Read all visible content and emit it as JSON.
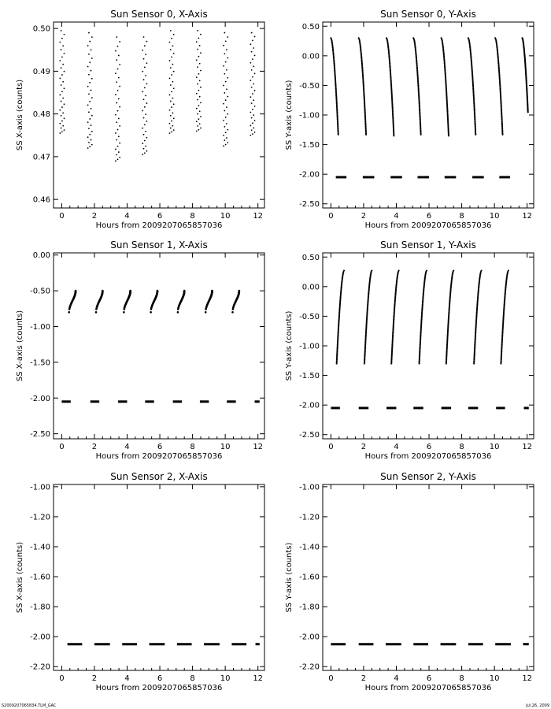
{
  "footer": {
    "left": "S2009207065834.TLM_GAC",
    "right": "Jul 26, 2009"
  },
  "chart_data": [
    {
      "type": "scatter",
      "title": "Sun Sensor 0, X-Axis",
      "xlabel": "Hours from  2009207065857036",
      "ylabel": "SS X-axis (counts)",
      "xlim": [
        -0.5,
        12.4
      ],
      "ylim": [
        0.458,
        0.5015
      ],
      "xticks": [
        0,
        2,
        4,
        6,
        8,
        10,
        12
      ],
      "yticks": [
        0.46,
        0.47,
        0.48,
        0.49,
        0.5
      ],
      "ytick_labels": [
        "0.46",
        "0.47",
        "0.48",
        "0.49",
        "0.50"
      ],
      "grid": false,
      "features": [
        {
          "kind": "vband",
          "x": [
            -0.1,
            0.15
          ],
          "y": [
            0.4755,
            0.4995
          ]
        },
        {
          "kind": "vband",
          "x": [
            1.6,
            1.85
          ],
          "y": [
            0.472,
            0.499
          ]
        },
        {
          "kind": "vband",
          "x": [
            3.3,
            3.55
          ],
          "y": [
            0.469,
            0.498
          ]
        },
        {
          "kind": "vband",
          "x": [
            4.95,
            5.2
          ],
          "y": [
            0.4705,
            0.498
          ]
        },
        {
          "kind": "vband",
          "x": [
            6.6,
            6.85
          ],
          "y": [
            0.4755,
            0.4995
          ]
        },
        {
          "kind": "vband",
          "x": [
            8.25,
            8.5
          ],
          "y": [
            0.476,
            0.4995
          ]
        },
        {
          "kind": "vband",
          "x": [
            9.9,
            10.15
          ],
          "y": [
            0.4725,
            0.499
          ]
        },
        {
          "kind": "vband",
          "x": [
            11.55,
            11.8
          ],
          "y": [
            0.475,
            0.499
          ]
        }
      ]
    },
    {
      "type": "scatter",
      "title": "Sun Sensor 0, Y-Axis",
      "xlabel": "Hours from  2009207065857036",
      "ylabel": "SS Y-axis (counts)",
      "xlim": [
        -0.5,
        12.4
      ],
      "ylim": [
        -2.57,
        0.57
      ],
      "xticks": [
        0,
        2,
        4,
        6,
        8,
        10,
        12
      ],
      "yticks": [
        -2.5,
        -2.0,
        -1.5,
        -1.0,
        -0.5,
        0.0,
        0.5
      ],
      "ytick_labels": [
        "-2.50",
        "-2.00",
        "-1.50",
        "-1.00",
        "-0.50",
        "0.00",
        "0.50"
      ],
      "grid": false,
      "features": [
        {
          "kind": "curve",
          "x": [
            0.0,
            0.45
          ],
          "y": [
            0.3,
            -1.33
          ],
          "shape": "concave"
        },
        {
          "kind": "curve",
          "x": [
            1.7,
            2.15
          ],
          "y": [
            0.3,
            -1.33
          ],
          "shape": "concave"
        },
        {
          "kind": "curve",
          "x": [
            3.4,
            3.85
          ],
          "y": [
            0.3,
            -1.35
          ],
          "shape": "concave"
        },
        {
          "kind": "curve",
          "x": [
            5.05,
            5.5
          ],
          "y": [
            0.3,
            -1.33
          ],
          "shape": "concave"
        },
        {
          "kind": "curve",
          "x": [
            6.75,
            7.2
          ],
          "y": [
            0.3,
            -1.35
          ],
          "shape": "concave"
        },
        {
          "kind": "curve",
          "x": [
            8.4,
            8.85
          ],
          "y": [
            0.3,
            -1.33
          ],
          "shape": "concave"
        },
        {
          "kind": "curve",
          "x": [
            10.05,
            10.5
          ],
          "y": [
            0.3,
            -1.33
          ],
          "shape": "concave"
        },
        {
          "kind": "curve",
          "x": [
            11.7,
            12.05
          ],
          "y": [
            0.3,
            -0.95
          ],
          "shape": "concave"
        },
        {
          "kind": "dash",
          "x": [
            0.3,
            0.95
          ],
          "y": -2.05
        },
        {
          "kind": "dash",
          "x": [
            1.95,
            2.65
          ],
          "y": -2.05
        },
        {
          "kind": "dash",
          "x": [
            3.65,
            4.35
          ],
          "y": -2.05
        },
        {
          "kind": "dash",
          "x": [
            5.3,
            6.0
          ],
          "y": -2.05
        },
        {
          "kind": "dash",
          "x": [
            6.95,
            7.65
          ],
          "y": -2.05
        },
        {
          "kind": "dash",
          "x": [
            8.65,
            9.35
          ],
          "y": -2.05
        },
        {
          "kind": "dash",
          "x": [
            10.3,
            10.95
          ],
          "y": -2.05
        }
      ]
    },
    {
      "type": "scatter",
      "title": "Sun Sensor 1, X-Axis",
      "xlabel": "Hours from  2009207065857036",
      "ylabel": "SS X-axis (counts)",
      "xlim": [
        -0.5,
        12.4
      ],
      "ylim": [
        -2.57,
        0.03
      ],
      "xticks": [
        0,
        2,
        4,
        6,
        8,
        10,
        12
      ],
      "yticks": [
        -2.5,
        -2.0,
        -1.5,
        -1.0,
        -0.5,
        0.0
      ],
      "ytick_labels": [
        "-2.50",
        "-2.00",
        "-1.50",
        "-1.00",
        "-0.50",
        "0.00"
      ],
      "grid": false,
      "features": [
        {
          "kind": "hook",
          "x": [
            0.45,
            0.85
          ],
          "y": [
            -0.8,
            -0.5
          ]
        },
        {
          "kind": "hook",
          "x": [
            2.1,
            2.5
          ],
          "y": [
            -0.8,
            -0.5
          ]
        },
        {
          "kind": "hook",
          "x": [
            3.8,
            4.2
          ],
          "y": [
            -0.8,
            -0.5
          ]
        },
        {
          "kind": "hook",
          "x": [
            5.45,
            5.85
          ],
          "y": [
            -0.8,
            -0.5
          ]
        },
        {
          "kind": "hook",
          "x": [
            7.1,
            7.5
          ],
          "y": [
            -0.8,
            -0.5
          ]
        },
        {
          "kind": "hook",
          "x": [
            8.8,
            9.2
          ],
          "y": [
            -0.8,
            -0.5
          ]
        },
        {
          "kind": "hook",
          "x": [
            10.45,
            10.85
          ],
          "y": [
            -0.8,
            -0.5
          ]
        },
        {
          "kind": "dash",
          "x": [
            0.0,
            0.55
          ],
          "y": -2.05
        },
        {
          "kind": "dash",
          "x": [
            1.75,
            2.3
          ],
          "y": -2.05
        },
        {
          "kind": "dash",
          "x": [
            3.45,
            4.0
          ],
          "y": -2.05
        },
        {
          "kind": "dash",
          "x": [
            5.1,
            5.65
          ],
          "y": -2.05
        },
        {
          "kind": "dash",
          "x": [
            6.8,
            7.35
          ],
          "y": -2.05
        },
        {
          "kind": "dash",
          "x": [
            8.45,
            9.0
          ],
          "y": -2.05
        },
        {
          "kind": "dash",
          "x": [
            10.1,
            10.65
          ],
          "y": -2.05
        },
        {
          "kind": "dash",
          "x": [
            11.8,
            12.1
          ],
          "y": -2.05
        }
      ]
    },
    {
      "type": "scatter",
      "title": "Sun Sensor 1, Y-Axis",
      "xlabel": "Hours from  2009207065857036",
      "ylabel": "SS Y-axis (counts)",
      "xlim": [
        -0.5,
        12.4
      ],
      "ylim": [
        -2.57,
        0.57
      ],
      "xticks": [
        0,
        2,
        4,
        6,
        8,
        10,
        12
      ],
      "yticks": [
        -2.5,
        -2.0,
        -1.5,
        -1.0,
        -0.5,
        0.0,
        0.5
      ],
      "ytick_labels": [
        "-2.50",
        "-2.00",
        "-1.50",
        "-1.00",
        "-0.50",
        "0.00",
        "0.50"
      ],
      "grid": false,
      "features": [
        {
          "kind": "curve",
          "x": [
            0.35,
            0.8
          ],
          "y": [
            -1.3,
            0.27
          ],
          "shape": "rising"
        },
        {
          "kind": "curve",
          "x": [
            2.05,
            2.5
          ],
          "y": [
            -1.3,
            0.27
          ],
          "shape": "rising"
        },
        {
          "kind": "curve",
          "x": [
            3.7,
            4.15
          ],
          "y": [
            -1.3,
            0.27
          ],
          "shape": "rising"
        },
        {
          "kind": "curve",
          "x": [
            5.4,
            5.85
          ],
          "y": [
            -1.3,
            0.27
          ],
          "shape": "rising"
        },
        {
          "kind": "curve",
          "x": [
            7.05,
            7.5
          ],
          "y": [
            -1.3,
            0.27
          ],
          "shape": "rising"
        },
        {
          "kind": "curve",
          "x": [
            8.75,
            9.2
          ],
          "y": [
            -1.3,
            0.27
          ],
          "shape": "rising"
        },
        {
          "kind": "curve",
          "x": [
            10.4,
            10.85
          ],
          "y": [
            -1.3,
            0.27
          ],
          "shape": "rising"
        },
        {
          "kind": "dash",
          "x": [
            0.0,
            0.55
          ],
          "y": -2.05
        },
        {
          "kind": "dash",
          "x": [
            1.7,
            2.3
          ],
          "y": -2.05
        },
        {
          "kind": "dash",
          "x": [
            3.4,
            4.0
          ],
          "y": -2.05
        },
        {
          "kind": "dash",
          "x": [
            5.05,
            5.65
          ],
          "y": -2.05
        },
        {
          "kind": "dash",
          "x": [
            6.75,
            7.35
          ],
          "y": -2.05
        },
        {
          "kind": "dash",
          "x": [
            8.4,
            9.0
          ],
          "y": -2.05
        },
        {
          "kind": "dash",
          "x": [
            10.1,
            10.65
          ],
          "y": -2.05
        },
        {
          "kind": "dash",
          "x": [
            11.8,
            12.1
          ],
          "y": -2.05
        }
      ]
    },
    {
      "type": "scatter",
      "title": "Sun Sensor 2, X-Axis",
      "xlabel": "Hours from  2009207065857036",
      "ylabel": "SS X-axis (counts)",
      "xlim": [
        -0.5,
        12.4
      ],
      "ylim": [
        -2.225,
        -0.985
      ],
      "xticks": [
        0,
        2,
        4,
        6,
        8,
        10,
        12
      ],
      "yticks": [
        -2.2,
        -2.0,
        -1.8,
        -1.6,
        -1.4,
        -1.2,
        -1.0
      ],
      "ytick_labels": [
        "-2.20",
        "-2.00",
        "-1.80",
        "-1.60",
        "-1.40",
        "-1.20",
        "-1.00"
      ],
      "grid": false,
      "features": [
        {
          "kind": "dash",
          "x": [
            0.35,
            1.25
          ],
          "y": -2.05
        },
        {
          "kind": "dash",
          "x": [
            2.0,
            2.95
          ],
          "y": -2.05
        },
        {
          "kind": "dash",
          "x": [
            3.7,
            4.6
          ],
          "y": -2.05
        },
        {
          "kind": "dash",
          "x": [
            5.35,
            6.3
          ],
          "y": -2.05
        },
        {
          "kind": "dash",
          "x": [
            7.05,
            7.95
          ],
          "y": -2.05
        },
        {
          "kind": "dash",
          "x": [
            8.7,
            9.65
          ],
          "y": -2.05
        },
        {
          "kind": "dash",
          "x": [
            10.4,
            11.3
          ],
          "y": -2.05
        },
        {
          "kind": "dash",
          "x": [
            11.85,
            12.1
          ],
          "y": -2.05
        }
      ]
    },
    {
      "type": "scatter",
      "title": "Sun Sensor 2, Y-Axis",
      "xlabel": "Hours from  2009207065857036",
      "ylabel": "SS Y-axis (counts)",
      "xlim": [
        -0.5,
        12.4
      ],
      "ylim": [
        -2.225,
        -0.985
      ],
      "xticks": [
        0,
        2,
        4,
        6,
        8,
        10,
        12
      ],
      "yticks": [
        -2.2,
        -2.0,
        -1.8,
        -1.6,
        -1.4,
        -1.2,
        -1.0
      ],
      "ytick_labels": [
        "-2.20",
        "-2.00",
        "-1.80",
        "-1.60",
        "-1.40",
        "-1.20",
        "-1.00"
      ],
      "grid": false,
      "features": [
        {
          "kind": "dash",
          "x": [
            0.0,
            0.9
          ],
          "y": -2.05
        },
        {
          "kind": "dash",
          "x": [
            1.7,
            2.6
          ],
          "y": -2.05
        },
        {
          "kind": "dash",
          "x": [
            3.35,
            4.3
          ],
          "y": -2.05
        },
        {
          "kind": "dash",
          "x": [
            5.05,
            5.95
          ],
          "y": -2.05
        },
        {
          "kind": "dash",
          "x": [
            6.7,
            7.65
          ],
          "y": -2.05
        },
        {
          "kind": "dash",
          "x": [
            8.4,
            9.3
          ],
          "y": -2.05
        },
        {
          "kind": "dash",
          "x": [
            10.05,
            11.0
          ],
          "y": -2.05
        },
        {
          "kind": "dash",
          "x": [
            11.75,
            12.1
          ],
          "y": -2.05
        }
      ]
    }
  ]
}
